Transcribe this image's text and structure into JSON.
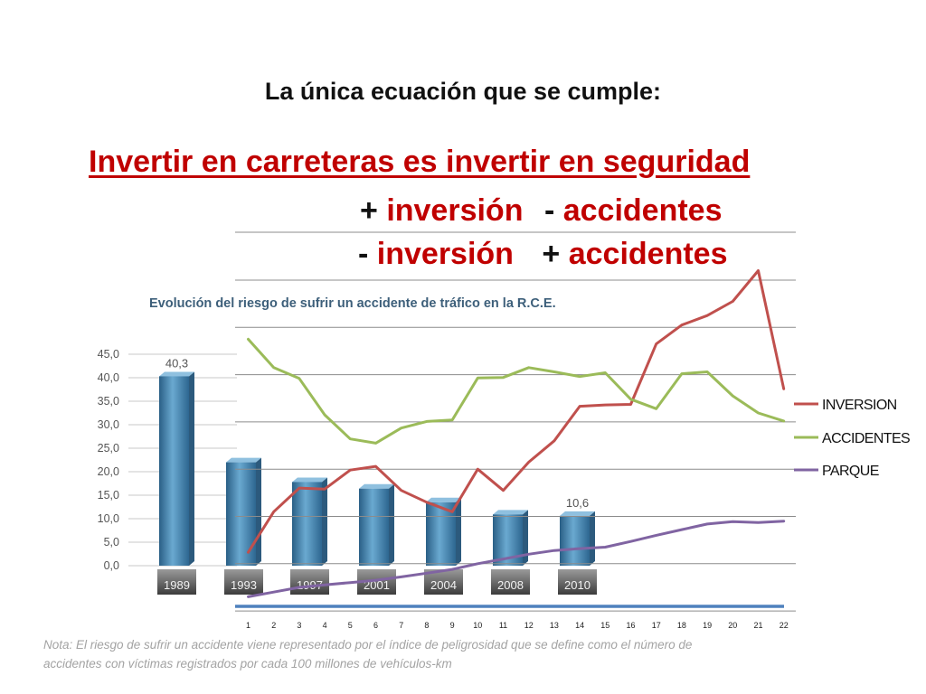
{
  "heading": "La única ecuación que se cumple:",
  "slogan": "Invertir en carreteras es invertir en seguridad",
  "equations": [
    {
      "sign1": "+",
      "term1": "inversión",
      "sign2": "-",
      "term2": "accidentes"
    },
    {
      "sign1": "-",
      "term1": "inversión",
      "sign2": "+",
      "term2": "accidentes"
    }
  ],
  "colors": {
    "red": "#c00000",
    "inversion": "#c0504d",
    "accidentes": "#9bbb59",
    "parque": "#8064a2",
    "bar": "#4f8db5",
    "axisline": "#4f81bd"
  },
  "chart_data": [
    {
      "type": "bar",
      "title": "Evolución del riesgo de sufrir un accidente de tráfico en la R.C.E.",
      "categories": [
        "1989",
        "1993",
        "1997",
        "2001",
        "2004",
        "2008",
        "2010"
      ],
      "values": [
        40.3,
        22.0,
        17.8,
        16.4,
        13.5,
        10.9,
        10.6
      ],
      "value_labels": [
        "40,3",
        "",
        "",
        "",
        "",
        "",
        "10,6"
      ],
      "yticks": [
        "0,0",
        "5,0",
        "10,0",
        "15,0",
        "20,0",
        "25,0",
        "30,0",
        "35,0",
        "40,0",
        "45,0"
      ],
      "ylim": [
        0,
        45
      ],
      "note": "Nota: El riesgo de sufrir un accidente viene representado por el índice de peligrosidad que se define como el número de accidentes con víctimas registrados por cada 100 millones de vehículos-km"
    },
    {
      "type": "line",
      "x": [
        "1",
        "2",
        "3",
        "4",
        "5",
        "6",
        "7",
        "8",
        "9",
        "10",
        "11",
        "12",
        "13",
        "14",
        "15",
        "16",
        "17",
        "18",
        "19",
        "20",
        "21",
        "22"
      ],
      "ylim": [
        -1,
        6
      ],
      "grid": true,
      "legend_position": "right",
      "series": [
        {
          "name": "INVERSION",
          "values": [
            0.24,
            1.1,
            1.6,
            1.58,
            1.98,
            2.06,
            1.55,
            1.3,
            1.1,
            2.0,
            1.55,
            2.15,
            2.6,
            3.33,
            3.36,
            3.37,
            4.65,
            5.05,
            5.25,
            5.55,
            6.2,
            3.7
          ]
        },
        {
          "name": "ACCIDENTES",
          "values": [
            4.75,
            4.15,
            3.92,
            3.15,
            2.64,
            2.55,
            2.87,
            3.01,
            3.04,
            3.93,
            3.94,
            4.15,
            4.06,
            3.96,
            4.04,
            3.48,
            3.28,
            4.02,
            4.06,
            3.55,
            3.19,
            3.02
          ]
        },
        {
          "name": "PARQUE",
          "values": [
            -0.7,
            -0.6,
            -0.5,
            -0.45,
            -0.4,
            -0.35,
            -0.28,
            -0.2,
            -0.12,
            0.0,
            0.1,
            0.2,
            0.28,
            0.32,
            0.35,
            0.47,
            0.6,
            0.72,
            0.84,
            0.89,
            0.87,
            0.9
          ]
        }
      ]
    }
  ]
}
